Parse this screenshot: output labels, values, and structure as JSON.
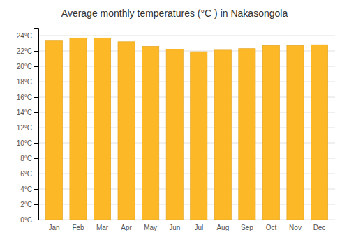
{
  "chart_data": {
    "type": "bar",
    "title": "Average monthly temperatures (°C ) in Nakasongola",
    "categories": [
      "Jan",
      "Feb",
      "Mar",
      "Apr",
      "May",
      "Jun",
      "Jul",
      "Aug",
      "Sep",
      "Oct",
      "Nov",
      "Dec"
    ],
    "values": [
      23.3,
      23.7,
      23.7,
      23.2,
      22.6,
      22.2,
      21.9,
      22.1,
      22.3,
      22.7,
      22.7,
      22.8
    ],
    "color": "#FDB827",
    "ylim": [
      0,
      25
    ],
    "yticks": [
      {
        "value": 0,
        "label": "0°C"
      },
      {
        "value": 2,
        "label": "2°C"
      },
      {
        "value": 4,
        "label": "4°C"
      },
      {
        "value": 6,
        "label": "6°C"
      },
      {
        "value": 8,
        "label": "8°C"
      },
      {
        "value": 10,
        "label": "10°C"
      },
      {
        "value": 12,
        "label": "12°C"
      },
      {
        "value": 14,
        "label": "14°C"
      },
      {
        "value": 16,
        "label": "16°C"
      },
      {
        "value": 18,
        "label": "18°C"
      },
      {
        "value": 20,
        "label": "20°C"
      },
      {
        "value": 22,
        "label": "22°C"
      },
      {
        "value": 24,
        "label": "24°C"
      }
    ],
    "grid": true
  }
}
